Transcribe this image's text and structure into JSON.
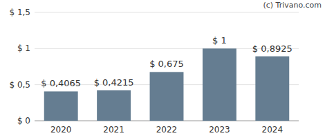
{
  "chart_data": {
    "type": "bar",
    "categories": [
      "2020",
      "2021",
      "2022",
      "2023",
      "2024"
    ],
    "values": [
      0.4065,
      0.4215,
      0.675,
      1,
      0.8925
    ],
    "value_labels": [
      "$ 0,4065",
      "$ 0,4215",
      "$ 0,675",
      "$ 1",
      "$ 0,8925"
    ],
    "color": "#657d91",
    "ylim": [
      0,
      1.5
    ],
    "yticks": [
      {
        "value": 0,
        "label": "$ 0"
      },
      {
        "value": 0.5,
        "label": "$ 0,5"
      },
      {
        "value": 1,
        "label": "$ 1"
      },
      {
        "value": 1.5,
        "label": "$ 1,5"
      }
    ],
    "grid": true,
    "data_labels": true,
    "annotations": [
      "(c) Trivano.com"
    ]
  }
}
